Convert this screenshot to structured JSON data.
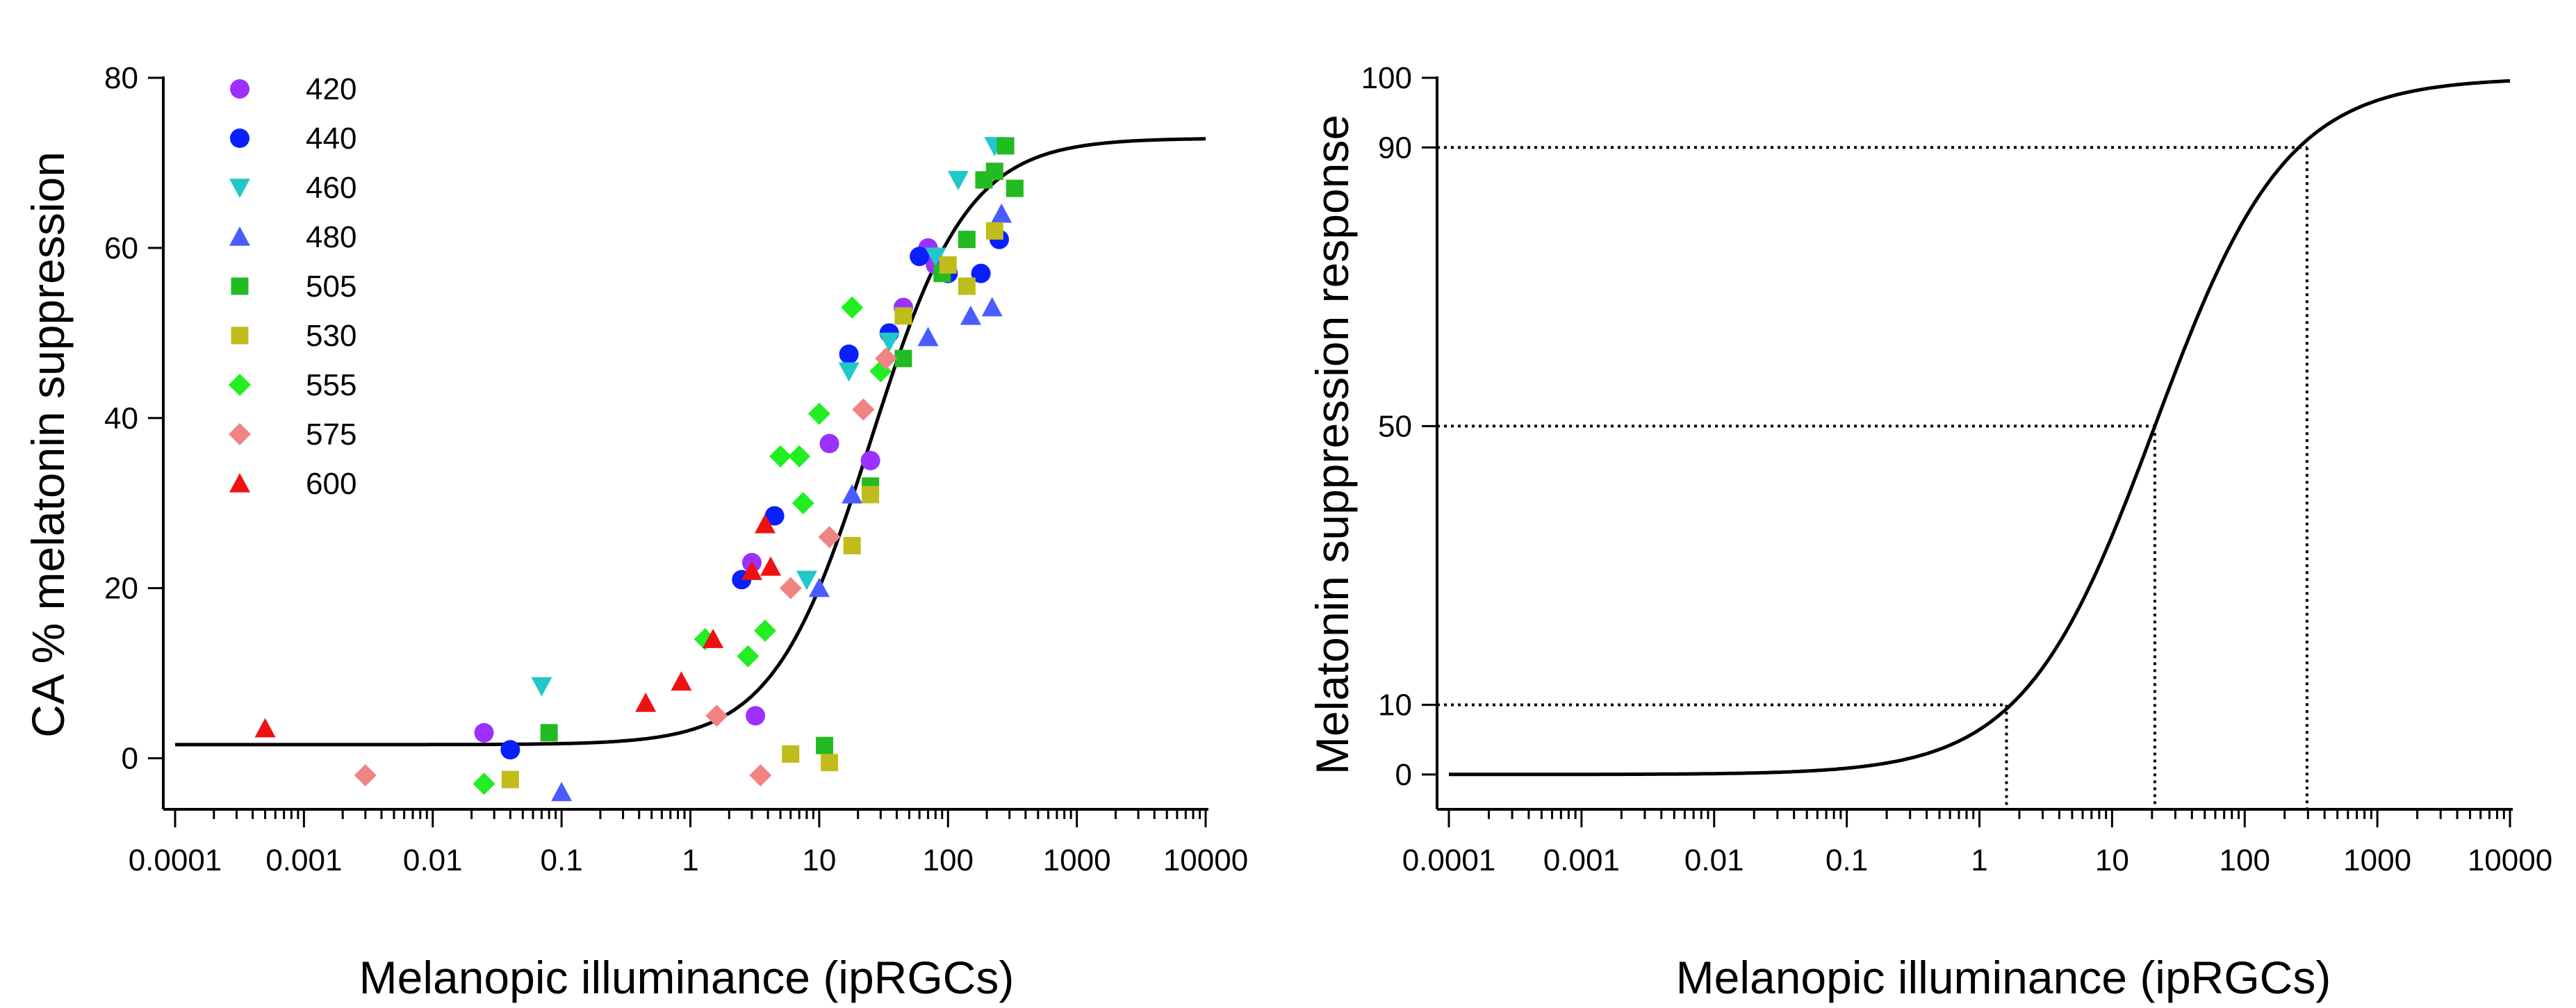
{
  "chart_data": [
    {
      "type": "scatter",
      "title": "",
      "xlabel": "Melanopic illuminance (ipRGCs)",
      "ylabel": "CA % melatonin suppression",
      "xscale": "log",
      "xlim": [
        0.0001,
        10000
      ],
      "ylim": [
        -6,
        80
      ],
      "x_ticks": [
        "0.0001",
        "0.001",
        "0.01",
        "0.1",
        "1",
        "10",
        "100",
        "1000",
        "10000"
      ],
      "y_ticks": [
        "0",
        "20",
        "40",
        "60",
        "80"
      ],
      "legend_position": "top-left",
      "series": [
        {
          "name": "420",
          "color": "#9b30ff",
          "marker": "circle",
          "points": [
            [
              0.025,
              3
            ],
            [
              3.2,
              5
            ],
            [
              3,
              23
            ],
            [
              12,
              37
            ],
            [
              25,
              35
            ],
            [
              45,
              53
            ],
            [
              70,
              60
            ],
            [
              80,
              58
            ]
          ]
        },
        {
          "name": "440",
          "color": "#0a1fff",
          "marker": "circle",
          "points": [
            [
              0.04,
              1
            ],
            [
              2.5,
              21
            ],
            [
              4.5,
              28.5
            ],
            [
              17,
              47.5
            ],
            [
              35,
              50
            ],
            [
              60,
              59
            ],
            [
              100,
              57
            ],
            [
              180,
              57
            ],
            [
              250,
              61
            ]
          ]
        },
        {
          "name": "460",
          "color": "#20c8c8",
          "marker": "triangle-down",
          "points": [
            [
              0.07,
              8.5
            ],
            [
              8,
              21
            ],
            [
              17,
              45.5
            ],
            [
              35,
              49
            ],
            [
              80,
              59
            ],
            [
              120,
              68
            ],
            [
              230,
              72
            ]
          ]
        },
        {
          "name": "480",
          "color": "#4a5cff",
          "marker": "triangle-up",
          "points": [
            [
              0.1,
              -4
            ],
            [
              10,
              20
            ],
            [
              18,
              31
            ],
            [
              70,
              49.5
            ],
            [
              150,
              52
            ],
            [
              220,
              53
            ],
            [
              260,
              64
            ]
          ]
        },
        {
          "name": "505",
          "color": "#22bb22",
          "marker": "square",
          "points": [
            [
              0.08,
              3
            ],
            [
              11,
              1.5
            ],
            [
              25,
              32
            ],
            [
              45,
              47
            ],
            [
              90,
              57
            ],
            [
              140,
              61
            ],
            [
              190,
              68
            ],
            [
              230,
              69
            ],
            [
              280,
              72
            ],
            [
              330,
              67
            ]
          ]
        },
        {
          "name": "530",
          "color": "#c0bc1a",
          "marker": "square",
          "points": [
            [
              0.04,
              -2.5
            ],
            [
              6,
              0.5
            ],
            [
              12,
              -0.5
            ],
            [
              18,
              25
            ],
            [
              25,
              31
            ],
            [
              45,
              52
            ],
            [
              100,
              58
            ],
            [
              140,
              55.5
            ],
            [
              230,
              62
            ]
          ]
        },
        {
          "name": "555",
          "color": "#22ee22",
          "marker": "diamond",
          "points": [
            [
              0.025,
              -3
            ],
            [
              1.3,
              14
            ],
            [
              2.8,
              12
            ],
            [
              3.8,
              15
            ],
            [
              5,
              35.5
            ],
            [
              7,
              35.5
            ],
            [
              7.5,
              30
            ],
            [
              10,
              40.5
            ],
            [
              18,
              53
            ],
            [
              30,
              45.5
            ]
          ]
        },
        {
          "name": "575",
          "color": "#f08484",
          "marker": "diamond",
          "points": [
            [
              0.003,
              -2
            ],
            [
              1.6,
              5
            ],
            [
              3.5,
              -2
            ],
            [
              6,
              20
            ],
            [
              12,
              26
            ],
            [
              22,
              41
            ],
            [
              33,
              47
            ]
          ]
        },
        {
          "name": "600",
          "color": "#ee1111",
          "marker": "triangle-up",
          "points": [
            [
              0.0005,
              3.5
            ],
            [
              0.45,
              6.5
            ],
            [
              0.85,
              9
            ],
            [
              1.5,
              14
            ],
            [
              3,
              22
            ],
            [
              3.8,
              27.5
            ],
            [
              4.2,
              22.5
            ]
          ]
        }
      ],
      "fit_curve": {
        "bottom": 1.6,
        "top": 72.9,
        "ec50": 25,
        "hill": 1.15
      }
    },
    {
      "type": "line",
      "title": "",
      "xlabel": "Melanopic illuminance (ipRGCs)",
      "ylabel": "Melatonin suppression response",
      "xscale": "log",
      "xlim": [
        0.0001,
        10000
      ],
      "ylim": [
        -5,
        100
      ],
      "x_ticks": [
        "0.0001",
        "0.001",
        "0.01",
        "0.1",
        "1",
        "10",
        "100",
        "1000",
        "10000"
      ],
      "y_ticks": [
        "0",
        "10",
        "50",
        "90",
        "100"
      ],
      "curve": {
        "bottom": 0,
        "top": 100,
        "ec50": 21,
        "hill": 0.879
      },
      "reference_lines": [
        {
          "y": 10,
          "x": 1.6
        },
        {
          "y": 50,
          "x": 21
        },
        {
          "y": 90,
          "x": 295
        }
      ]
    }
  ]
}
